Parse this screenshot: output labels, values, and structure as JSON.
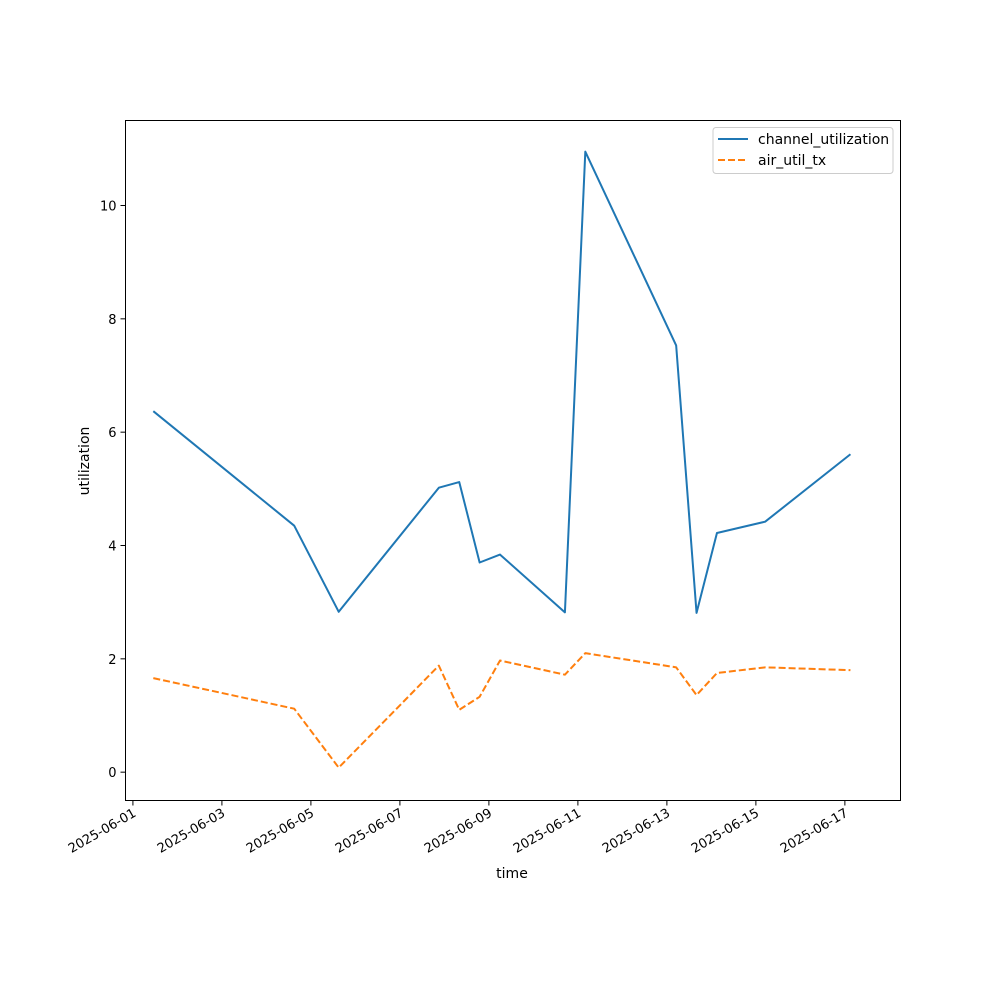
{
  "chart_data": {
    "type": "line",
    "xlabel": "time",
    "ylabel": "utilization",
    "x_tick_labels": [
      "2025-06-01",
      "2025-06-03",
      "2025-06-05",
      "2025-06-07",
      "2025-06-09",
      "2025-06-11",
      "2025-06-13",
      "2025-06-15",
      "2025-06-17"
    ],
    "y_tick_labels": [
      "0",
      "2",
      "4",
      "6",
      "8",
      "10"
    ],
    "xlim": [
      "2025-05-31T20:00",
      "2025-06-18T06:00"
    ],
    "ylim": [
      -0.5,
      11.5
    ],
    "grid": false,
    "legend_position": "top-right",
    "x": [
      "2025-06-01T11:00",
      "2025-06-04T15:00",
      "2025-06-05T15:00",
      "2025-06-07T21:00",
      "2025-06-08T08:00",
      "2025-06-08T19:00",
      "2025-06-09T06:00",
      "2025-06-10T17:00",
      "2025-06-11T04:00",
      "2025-06-13T05:00",
      "2025-06-13T16:00",
      "2025-06-14T03:00",
      "2025-06-15T05:00",
      "2025-06-17T03:00"
    ],
    "series": [
      {
        "name": "channel_utilization",
        "color": "#1f77b4",
        "linestyle": "solid",
        "values": [
          6.37,
          4.35,
          2.83,
          5.02,
          5.12,
          3.7,
          3.84,
          2.82,
          10.95,
          7.53,
          2.81,
          4.22,
          4.42,
          5.61
        ]
      },
      {
        "name": "air_util_tx",
        "color": "#ff7f0e",
        "linestyle": "dashed",
        "values": [
          1.66,
          1.12,
          0.08,
          1.88,
          1.1,
          1.33,
          1.97,
          1.72,
          2.1,
          1.85,
          1.36,
          1.75,
          1.85,
          1.8
        ]
      }
    ]
  }
}
